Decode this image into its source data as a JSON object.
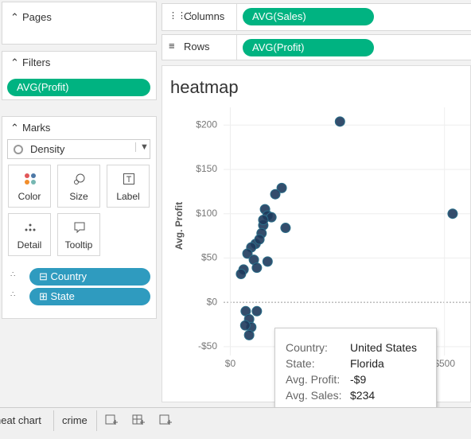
{
  "panel": {
    "pages": "Pages",
    "filters": "Filters",
    "filter_pill": "AVG(Profit)",
    "marks": "Marks",
    "mark_type": "Density",
    "buttons": [
      "Color",
      "Size",
      "Label",
      "Detail",
      "Tooltip"
    ],
    "fields": [
      "Country",
      "State"
    ]
  },
  "shelves": {
    "columns": "Columns",
    "columns_pill": "AVG(Sales)",
    "rows": "Rows",
    "rows_pill": "AVG(Profit)"
  },
  "tabs": [
    "heat chart",
    "crime"
  ],
  "chart_data": {
    "type": "scatter",
    "title": "heatmap",
    "y_label": "Avg. Profit",
    "x": [
      256,
      519,
      120,
      105,
      129,
      81,
      87,
      96,
      77,
      73,
      59,
      49,
      68,
      87,
      40,
      55,
      62,
      31,
      25,
      36,
      62,
      44,
      49,
      44,
      35,
      77
    ],
    "values": [
      204,
      100,
      129,
      122,
      84,
      105,
      98,
      96,
      87,
      78,
      66,
      62,
      71,
      46,
      55,
      48,
      39,
      37,
      32,
      -10,
      -10,
      -19,
      -28,
      -37,
      -26,
      93
    ],
    "color": "#1e3a5c",
    "xlim": [
      -90,
      560
    ],
    "ylim": [
      -60,
      220
    ],
    "xticks": [
      {
        "value": 0,
        "label": "$0"
      },
      {
        "value": 500,
        "label": "$500"
      }
    ],
    "yticks": [
      {
        "value": -50,
        "label": "-$50"
      },
      {
        "value": 0,
        "label": "$0"
      },
      {
        "value": 50,
        "label": "$50"
      },
      {
        "value": 100,
        "label": "$100"
      },
      {
        "value": 150,
        "label": "$150"
      },
      {
        "value": 200,
        "label": "$200"
      }
    ],
    "grid": true
  },
  "tooltip": {
    "rows": [
      [
        "Country:",
        "United States"
      ],
      [
        "State:",
        "Florida"
      ],
      [
        "Avg. Profit:",
        "-$9"
      ],
      [
        "Avg. Sales:",
        "$234"
      ]
    ]
  }
}
